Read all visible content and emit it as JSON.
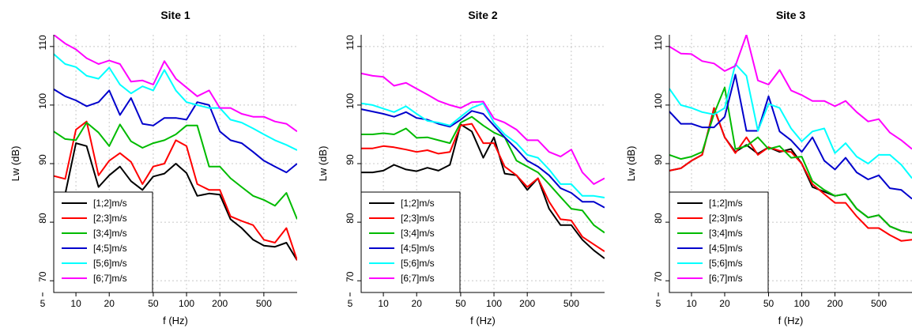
{
  "chart_data": [
    {
      "type": "line",
      "title": "Site 1",
      "xlabel": "f (Hz)",
      "ylabel": "Lw (dB)",
      "xscale": "log",
      "xlim": [
        6.3,
        1000
      ],
      "ylim": [
        68,
        112
      ],
      "xticks": [
        5,
        10,
        20,
        50,
        100,
        200,
        500
      ],
      "yticks": [
        70,
        80,
        90,
        100,
        110
      ],
      "grid": true,
      "legend_position": "bottom-left",
      "x": [
        6.3,
        8,
        10,
        12.5,
        16,
        20,
        25,
        31.5,
        40,
        50,
        63,
        80,
        100,
        125,
        160,
        200,
        250,
        315,
        400,
        500,
        630,
        800,
        1000
      ],
      "series": [
        {
          "name": "[1;2]m/s",
          "color": "#000000",
          "values": [
            84.7,
            84.8,
            93.5,
            93.0,
            86.0,
            88.0,
            89.5,
            87.0,
            85.5,
            87.8,
            88.3,
            90.0,
            88.4,
            84.5,
            84.9,
            84.7,
            80.5,
            79.0,
            77.0,
            76.0,
            75.8,
            76.5,
            73.5
          ]
        },
        {
          "name": "[2;3]m/s",
          "color": "#ff0000",
          "values": [
            87.9,
            87.4,
            95.8,
            97.2,
            88.0,
            90.5,
            91.8,
            90.3,
            86.5,
            89.5,
            90.0,
            94.0,
            93.0,
            86.5,
            85.5,
            85.5,
            81.0,
            80.2,
            79.5,
            77.0,
            76.5,
            79.0,
            73.5
          ]
        },
        {
          "name": "[3;4]m/s",
          "color": "#00bb00",
          "values": [
            95.5,
            94.2,
            94.0,
            97.0,
            95.3,
            93.0,
            96.7,
            93.8,
            92.7,
            93.5,
            94.0,
            95.0,
            96.5,
            96.5,
            89.5,
            89.5,
            87.5,
            86.0,
            84.5,
            83.8,
            82.8,
            85.0,
            80.5
          ]
        },
        {
          "name": "[4;5]m/s",
          "color": "#0000cc",
          "values": [
            102.7,
            101.5,
            100.8,
            99.8,
            100.5,
            102.5,
            98.3,
            101.2,
            96.8,
            96.5,
            97.8,
            97.8,
            97.5,
            100.5,
            100.0,
            95.5,
            94.0,
            93.5,
            92.0,
            90.5,
            89.5,
            88.5,
            90.0
          ]
        },
        {
          "name": "[5;6]m/s",
          "color": "#00ffff",
          "values": [
            108.7,
            107.0,
            106.5,
            105.0,
            104.5,
            106.4,
            103.5,
            102.0,
            103.2,
            102.5,
            106.0,
            102.5,
            100.5,
            100.0,
            99.5,
            99.5,
            97.5,
            97.0,
            96.0,
            95.0,
            94.0,
            93.2,
            92.3
          ]
        },
        {
          "name": "[6;7]m/s",
          "color": "#ff00ff",
          "values": [
            112.0,
            110.5,
            109.5,
            108.0,
            107.0,
            107.6,
            107.0,
            104.0,
            104.2,
            103.5,
            107.5,
            104.5,
            103.0,
            101.5,
            102.5,
            99.5,
            99.5,
            98.5,
            98.0,
            98.0,
            97.2,
            96.8,
            95.5
          ]
        }
      ]
    },
    {
      "type": "line",
      "title": "Site 2",
      "xlabel": "f (Hz)",
      "ylabel": "Lw (dB)",
      "xscale": "log",
      "xlim": [
        6.3,
        1000
      ],
      "ylim": [
        68,
        112
      ],
      "xticks": [
        5,
        10,
        20,
        50,
        100,
        200,
        500
      ],
      "yticks": [
        70,
        80,
        90,
        100,
        110
      ],
      "grid": true,
      "legend_position": "bottom-left",
      "x": [
        6.3,
        8,
        10,
        12.5,
        16,
        20,
        25,
        31.5,
        40,
        50,
        63,
        80,
        100,
        125,
        160,
        200,
        250,
        315,
        400,
        500,
        630,
        800,
        1000
      ],
      "series": [
        {
          "name": "[1;2]m/s",
          "color": "#000000",
          "values": [
            88.5,
            88.5,
            88.8,
            89.8,
            89.0,
            88.7,
            89.3,
            88.8,
            89.8,
            96.7,
            95.5,
            91.0,
            94.5,
            88.3,
            88.0,
            85.5,
            87.5,
            82.3,
            79.5,
            79.5,
            77.0,
            75.2,
            73.8
          ]
        },
        {
          "name": "[2;3]m/s",
          "color": "#ff0000",
          "values": [
            92.6,
            92.6,
            93.0,
            92.8,
            92.4,
            92.0,
            92.3,
            91.7,
            92.0,
            96.5,
            96.8,
            93.5,
            93.5,
            89.5,
            88.0,
            86.0,
            87.5,
            83.5,
            80.5,
            80.3,
            77.5,
            76.2,
            75.0
          ]
        },
        {
          "name": "[3;4]m/s",
          "color": "#00bb00",
          "values": [
            95.0,
            95.0,
            95.2,
            95.0,
            96.0,
            94.4,
            94.5,
            94.0,
            93.5,
            97.0,
            98.0,
            96.5,
            95.3,
            94.5,
            90.5,
            89.5,
            88.5,
            86.5,
            84.3,
            82.3,
            82.0,
            79.5,
            78.2
          ]
        },
        {
          "name": "[4;5]m/s",
          "color": "#0000cc",
          "values": [
            99.3,
            98.9,
            98.5,
            98.0,
            98.8,
            97.8,
            97.5,
            96.8,
            96.3,
            97.5,
            99.0,
            98.5,
            96.5,
            94.5,
            92.5,
            90.5,
            89.5,
            88.0,
            85.8,
            85.0,
            83.5,
            83.5,
            82.5
          ]
        },
        {
          "name": "[5;6]m/s",
          "color": "#00ffff",
          "values": [
            100.3,
            100.0,
            99.4,
            98.8,
            99.8,
            98.5,
            97.3,
            97.0,
            96.5,
            98.0,
            99.5,
            100.3,
            97.0,
            95.0,
            93.5,
            91.5,
            91.0,
            89.0,
            86.5,
            86.5,
            84.5,
            84.5,
            84.2
          ]
        },
        {
          "name": "[6;7]m/s",
          "color": "#ff00ff",
          "values": [
            105.4,
            105.0,
            104.8,
            103.3,
            103.8,
            102.8,
            101.8,
            100.7,
            100.0,
            99.5,
            100.5,
            100.6,
            97.7,
            97.0,
            95.8,
            94.0,
            94.0,
            92.0,
            91.2,
            92.4,
            88.5,
            86.5,
            87.5
          ]
        }
      ]
    },
    {
      "type": "line",
      "title": "Site 3",
      "xlabel": "f (Hz)",
      "ylabel": "Lw (dB)",
      "xscale": "log",
      "xlim": [
        6.3,
        1000
      ],
      "ylim": [
        68,
        112
      ],
      "xticks": [
        5,
        10,
        20,
        50,
        100,
        200,
        500
      ],
      "yticks": [
        70,
        80,
        90,
        100,
        110
      ],
      "grid": true,
      "legend_position": "bottom-left",
      "x": [
        6.3,
        8,
        10,
        12.5,
        16,
        20,
        25,
        31.5,
        40,
        50,
        63,
        80,
        100,
        125,
        160,
        200,
        250,
        315,
        400,
        500,
        630,
        800,
        1000
      ],
      "series": [
        {
          "name": "[1;2]m/s",
          "color": "#000000",
          "values": [
            88.8,
            89.2,
            90.5,
            91.5,
            99.5,
            94.5,
            92.0,
            93.2,
            91.7,
            92.8,
            92.0,
            92.5,
            90.0,
            86.0,
            85.2,
            84.5,
            84.8,
            82.3,
            80.8,
            81.2,
            79.3,
            78.5,
            78.2
          ]
        },
        {
          "name": "[2;3]m/s",
          "color": "#ff0000",
          "values": [
            88.8,
            89.2,
            90.5,
            91.5,
            99.5,
            94.5,
            91.8,
            94.5,
            91.5,
            92.8,
            92.2,
            92.0,
            90.0,
            86.5,
            84.8,
            83.3,
            83.3,
            81.0,
            79.0,
            79.0,
            77.8,
            76.8,
            77.0
          ]
        },
        {
          "name": "[3;4]m/s",
          "color": "#00bb00",
          "values": [
            91.5,
            90.8,
            91.2,
            92.0,
            98.5,
            103.0,
            92.5,
            93.0,
            94.5,
            92.5,
            93.0,
            91.0,
            91.2,
            87.0,
            85.5,
            84.5,
            84.8,
            82.3,
            80.8,
            81.2,
            79.3,
            78.5,
            78.2
          ]
        },
        {
          "name": "[4;5]m/s",
          "color": "#0000cc",
          "values": [
            98.9,
            96.8,
            96.8,
            96.2,
            96.2,
            98.0,
            105.2,
            95.6,
            95.6,
            101.5,
            95.5,
            94.0,
            92.0,
            94.5,
            90.5,
            89.0,
            91.0,
            88.5,
            87.3,
            88.0,
            85.8,
            85.5,
            84.0
          ]
        },
        {
          "name": "[5;6]m/s",
          "color": "#00ffff",
          "values": [
            102.8,
            100.0,
            99.5,
            98.8,
            98.4,
            99.5,
            107.0,
            105.0,
            95.6,
            100.2,
            99.5,
            96.0,
            93.8,
            95.5,
            96.0,
            91.8,
            93.5,
            91.2,
            90.0,
            91.5,
            91.5,
            89.8,
            87.5
          ]
        },
        {
          "name": "[6;7]m/s",
          "color": "#ff00ff",
          "values": [
            110.0,
            108.8,
            108.7,
            107.5,
            107.1,
            105.8,
            106.7,
            112.0,
            104.2,
            103.5,
            106.0,
            102.5,
            101.7,
            100.7,
            100.7,
            99.8,
            100.7,
            98.8,
            97.2,
            97.6,
            95.3,
            94.0,
            92.5
          ]
        }
      ]
    }
  ]
}
